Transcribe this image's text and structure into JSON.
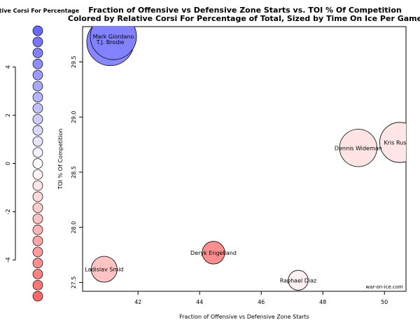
{
  "chart_data": {
    "type": "scatter",
    "title_line1": "Fraction of Offensive vs Defensive Zone Starts vs. TOI % Of Competition",
    "title_line2": "Colored by Relative Corsi For Percentage of Total, Sized by Time On Ice Per Game",
    "xlabel": "Fraction of Offensive vs Defensive Zone Starts",
    "ylabel": "TOI % Of Competition",
    "xlim": [
      40.2,
      50.7
    ],
    "ylim": [
      27.42,
      29.82
    ],
    "xticks": [
      42,
      44,
      46,
      48,
      50
    ],
    "yticks": [
      27.5,
      28.0,
      28.5,
      29.0,
      29.5
    ],
    "watermark": "war-on-ice.com",
    "points": [
      {
        "name": "Mark Giordano",
        "x": 41.2,
        "y": 29.73,
        "toi_size": 1.0,
        "rel_corsi": 4.6
      },
      {
        "name": "T.J. Brodie",
        "x": 41.1,
        "y": 29.68,
        "toi_size": 1.02,
        "rel_corsi": 4.4
      },
      {
        "name": "Dennis Wideman",
        "x": 49.15,
        "y": 28.72,
        "toi_size": 0.81,
        "rel_corsi": -1.0
      },
      {
        "name": "Kris Russell",
        "x": 50.5,
        "y": 28.77,
        "toi_size": 0.87,
        "rel_corsi": -0.9
      },
      {
        "name": "Deryk Engelland",
        "x": 44.45,
        "y": 27.77,
        "toi_size": 0.49,
        "rel_corsi": -4.1
      },
      {
        "name": "Ladislav Smid",
        "x": 40.9,
        "y": 27.62,
        "toi_size": 0.56,
        "rel_corsi": -2.2
      },
      {
        "name": "Raphael Diaz",
        "x": 47.2,
        "y": 27.52,
        "toi_size": 0.43,
        "rel_corsi": -0.5
      }
    ],
    "legend": {
      "title": "Relative Corsi For Percentage",
      "ticks": [
        4,
        2,
        0,
        -2,
        -4
      ],
      "range": [
        5.5,
        -5.5
      ],
      "swatch_count": 25
    }
  }
}
